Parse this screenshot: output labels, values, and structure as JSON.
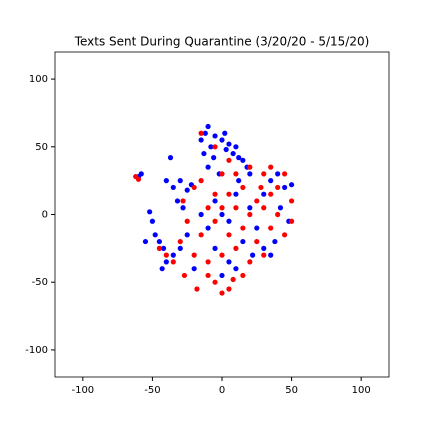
{
  "chart_data": {
    "type": "scatter",
    "title": "Texts Sent During Quarantine (3/20/20 - 5/15/20)",
    "xlim": [
      -120,
      120
    ],
    "ylim": [
      -120,
      120
    ],
    "xticks": [
      -100,
      -50,
      0,
      50,
      100
    ],
    "yticks": [
      -100,
      -50,
      0,
      50,
      100
    ],
    "series": [
      {
        "color": "#0000ff",
        "x": [
          -15,
          -12,
          -10,
          -8,
          -5,
          0,
          3,
          5,
          8,
          10,
          12,
          15,
          -13,
          -6,
          2,
          18,
          20,
          -10,
          -35,
          -30,
          -25,
          -32,
          -28,
          -40,
          -37,
          -22,
          -52,
          -50,
          -48,
          -45,
          -42,
          -40,
          -43,
          -35,
          -30,
          -55,
          -60,
          -58,
          -5,
          0,
          5,
          10,
          -10,
          -15,
          15,
          20,
          25,
          30,
          35,
          40,
          45,
          50,
          38,
          30,
          5,
          -5,
          0,
          10,
          -20,
          -25,
          12,
          -2,
          42,
          48,
          35,
          22
        ],
        "values": [
          55,
          60,
          65,
          50,
          58,
          55,
          48,
          52,
          45,
          50,
          42,
          40,
          45,
          42,
          60,
          35,
          30,
          35,
          20,
          25,
          18,
          10,
          5,
          25,
          42,
          22,
          2,
          -5,
          -15,
          -20,
          -25,
          -35,
          -40,
          -30,
          -25,
          -20,
          28,
          30,
          10,
          0,
          -5,
          15,
          -10,
          0,
          -20,
          5,
          -10,
          15,
          25,
          30,
          20,
          22,
          -20,
          -25,
          -35,
          -25,
          -45,
          -40,
          -40,
          -15,
          25,
          30,
          5,
          -5,
          -30,
          -30
        ]
      },
      {
        "color": "#ff0000",
        "x": [
          -60,
          -62,
          -15,
          -5,
          5,
          -20,
          -15,
          0,
          10,
          20,
          30,
          35,
          45,
          40,
          28,
          15,
          5,
          -5,
          -10,
          0,
          10,
          20,
          30,
          40,
          50,
          45,
          35,
          25,
          15,
          5,
          -5,
          -15,
          -25,
          -30,
          -20,
          -10,
          0,
          10,
          20,
          -5,
          0,
          5,
          -10,
          8,
          -35,
          -40,
          -45,
          -27,
          15,
          50,
          30,
          -28,
          25,
          35,
          -18
        ],
        "values": [
          26,
          28,
          60,
          50,
          40,
          20,
          25,
          30,
          30,
          35,
          30,
          35,
          30,
          20,
          20,
          20,
          15,
          15,
          5,
          5,
          5,
          0,
          5,
          0,
          -5,
          -15,
          -10,
          -20,
          -10,
          -15,
          -5,
          -15,
          -5,
          -20,
          -30,
          -35,
          -30,
          -25,
          -35,
          -50,
          -58,
          -55,
          -45,
          -48,
          -35,
          -30,
          -25,
          -45,
          -45,
          10,
          -30,
          10,
          10,
          15,
          -55
        ]
      }
    ]
  }
}
